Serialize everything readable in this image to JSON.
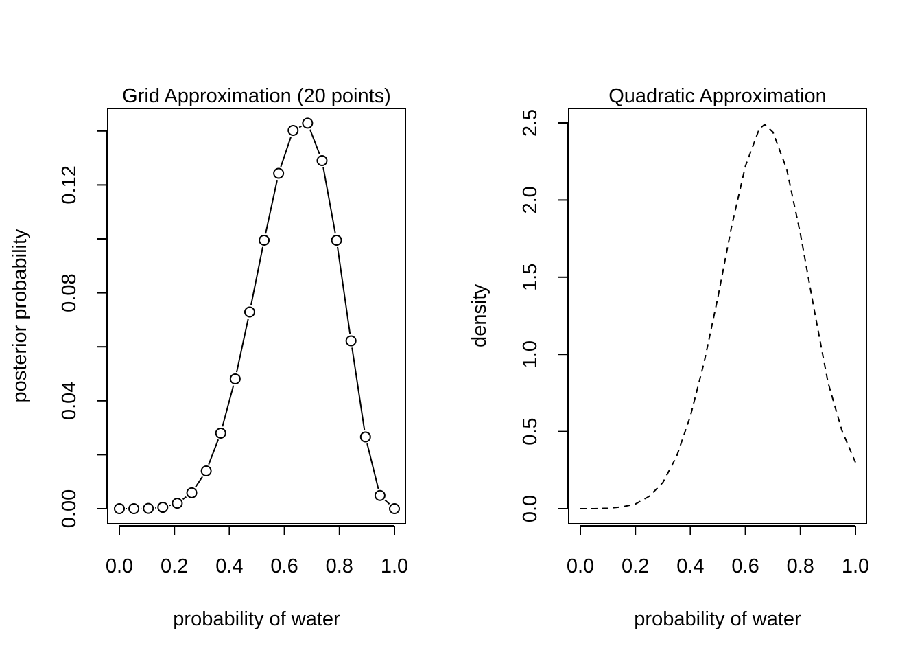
{
  "chart_data": [
    {
      "type": "line",
      "title": "Grid Approximation (20 points)",
      "xlabel": "probability of water",
      "ylabel": "posterior probability",
      "xlim": [
        0,
        1
      ],
      "ylim": [
        0,
        0.143
      ],
      "xticks": [
        "0.0",
        "0.2",
        "0.4",
        "0.6",
        "0.8",
        "1.0"
      ],
      "yticks": [
        "0.00",
        "0.04",
        "0.08",
        "0.12"
      ],
      "series": [
        {
          "style": "line-with-open-circles",
          "x": [
            0.0,
            0.0526,
            0.1053,
            0.1579,
            0.2105,
            0.2632,
            0.3158,
            0.3684,
            0.4211,
            0.4737,
            0.5263,
            0.5789,
            0.6316,
            0.6842,
            0.7368,
            0.7895,
            0.8421,
            0.8947,
            0.9474,
            1.0
          ],
          "y": [
            0.0,
            0.0,
            0.0001,
            0.0005,
            0.002,
            0.0059,
            0.014,
            0.028,
            0.0481,
            0.0729,
            0.0995,
            0.1243,
            0.1402,
            0.1429,
            0.129,
            0.0995,
            0.0622,
            0.0266,
            0.0049,
            0.0
          ]
        }
      ],
      "grid": false,
      "legend": "none"
    },
    {
      "type": "line",
      "title": "Quadratic Approximation",
      "xlabel": "probability of water",
      "ylabel": "density",
      "xlim": [
        0,
        1
      ],
      "ylim": [
        0,
        2.5
      ],
      "xticks": [
        "0.0",
        "0.2",
        "0.4",
        "0.6",
        "0.8",
        "1.0"
      ],
      "yticks": [
        "0.0",
        "0.5",
        "1.0",
        "1.5",
        "2.0",
        "2.5"
      ],
      "series": [
        {
          "style": "dashed",
          "x": [
            0.0,
            0.05,
            0.1,
            0.15,
            0.2,
            0.25,
            0.3,
            0.35,
            0.4,
            0.45,
            0.5,
            0.55,
            0.6,
            0.65,
            0.67,
            0.7,
            0.75,
            0.8,
            0.85,
            0.9,
            0.95,
            1.0
          ],
          "y": [
            0.0,
            0.0,
            0.003,
            0.011,
            0.03,
            0.08,
            0.17,
            0.34,
            0.6,
            0.95,
            1.37,
            1.83,
            2.22,
            2.46,
            2.49,
            2.44,
            2.2,
            1.78,
            1.29,
            0.82,
            0.51,
            0.3
          ]
        }
      ],
      "grid": false,
      "legend": "none"
    }
  ]
}
